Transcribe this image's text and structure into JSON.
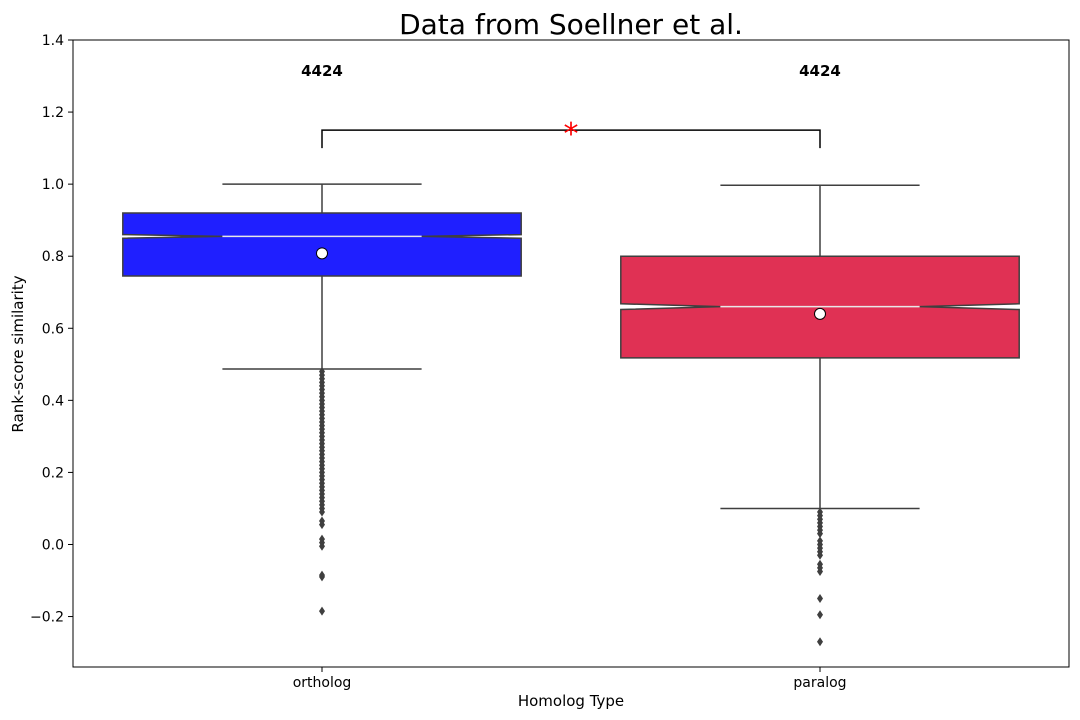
{
  "chart_data": {
    "type": "box",
    "title": "Data from Soellner et al.",
    "xlabel": "Homolog Type",
    "ylabel": "Rank-score similarity",
    "ylim": [
      -0.34,
      1.4
    ],
    "yticks": [
      -0.2,
      0.0,
      0.2,
      0.4,
      0.6,
      0.8,
      1.0,
      1.2,
      1.4
    ],
    "ytick_labels": [
      "−0.2",
      "0.0",
      "0.2",
      "0.4",
      "0.6",
      "0.8",
      "1.0",
      "1.2",
      "1.4"
    ],
    "notched": true,
    "categories": [
      "ortholog",
      "paralog"
    ],
    "boxes": [
      {
        "category": "ortholog",
        "color": "#0000ff",
        "count_label": "4424",
        "q1": 0.745,
        "median": 0.855,
        "q3": 0.92,
        "notch_low": 0.85,
        "notch_high": 0.86,
        "whisker_low": 0.487,
        "whisker_high": 1.0,
        "mean": 0.808,
        "outliers": [
          0.48,
          0.47,
          0.46,
          0.45,
          0.44,
          0.43,
          0.42,
          0.41,
          0.4,
          0.39,
          0.38,
          0.37,
          0.36,
          0.35,
          0.34,
          0.33,
          0.32,
          0.31,
          0.3,
          0.29,
          0.28,
          0.27,
          0.26,
          0.25,
          0.24,
          0.23,
          0.22,
          0.21,
          0.2,
          0.19,
          0.18,
          0.17,
          0.16,
          0.15,
          0.14,
          0.13,
          0.12,
          0.11,
          0.1,
          0.09,
          0.065,
          0.055,
          0.015,
          0.005,
          -0.005,
          -0.085,
          -0.09,
          -0.185
        ]
      },
      {
        "category": "paralog",
        "color": "#dc143c",
        "count_label": "4424",
        "q1": 0.518,
        "median": 0.66,
        "q3": 0.8,
        "notch_low": 0.652,
        "notch_high": 0.668,
        "whisker_low": 0.1,
        "whisker_high": 0.997,
        "mean": 0.64,
        "outliers": [
          0.09,
          0.08,
          0.07,
          0.06,
          0.05,
          0.04,
          0.03,
          0.01,
          0.0,
          -0.01,
          -0.02,
          -0.03,
          -0.055,
          -0.065,
          -0.075,
          -0.15,
          -0.195,
          -0.27
        ]
      }
    ],
    "significance": {
      "from": "ortholog",
      "to": "paralog",
      "y": 1.15,
      "tick_bottom": 1.1,
      "label": "*",
      "label_color": "#ff0000"
    }
  }
}
